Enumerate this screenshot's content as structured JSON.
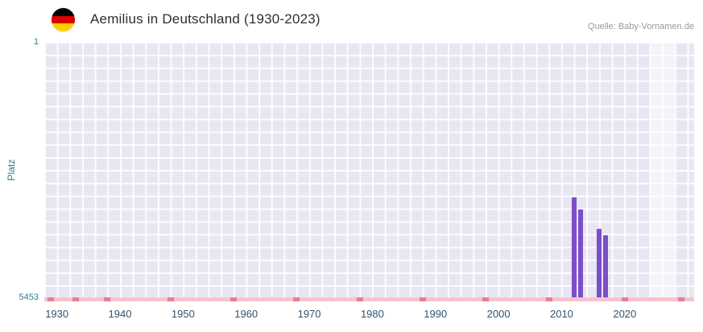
{
  "header": {
    "title": "Aemilius in Deutschland (1930-2023)",
    "source": "Quelle: Baby-Vornamen.de",
    "flag_icon": "germany-flag",
    "flag_colors": [
      "#000000",
      "#dd0000",
      "#ffce00"
    ]
  },
  "chart_data": {
    "type": "bar",
    "title": "Aemilius in Deutschland (1930-2023)",
    "xlabel": "",
    "ylabel": "Platz",
    "x_domain": [
      1928,
      2031
    ],
    "y_domain": [
      1,
      5453
    ],
    "y_axis_inverted": true,
    "y_tick_labels": [
      "1",
      "5453"
    ],
    "x_tick_years": [
      1930,
      1940,
      1950,
      1960,
      1970,
      1980,
      1990,
      2000,
      2010,
      2020
    ],
    "grid": true,
    "legend": "none",
    "series": [
      {
        "name": "Platz",
        "points": [
          {
            "year": 2012,
            "rank": 3310
          },
          {
            "year": 2013,
            "rank": 3560
          },
          {
            "year": 2016,
            "rank": 3980
          },
          {
            "year": 2017,
            "rank": 4110
          }
        ]
      }
    ],
    "axis_marks_years": [
      1929,
      1933,
      1938,
      1948,
      1958,
      1968,
      1978,
      1988,
      1998,
      2008,
      2020,
      2029
    ],
    "plot_band": {
      "from_year": 2024,
      "to_year": 2028
    },
    "colors": {
      "bar": "#7b4fc8",
      "plot_bg": "#e9e6f3",
      "grid_line": "#ffffff",
      "axis_strip": "#f6c3ce",
      "axis_mark": "#e57f95",
      "x_tick_label": "#33536b",
      "y_tick_label": "#2e7d8f",
      "y_axis_title": "#2e7d8f",
      "plot_band_fill": "rgba(255,255,255,0.5)",
      "title_text": "#2e2e2e",
      "source_text": "#999999"
    }
  }
}
